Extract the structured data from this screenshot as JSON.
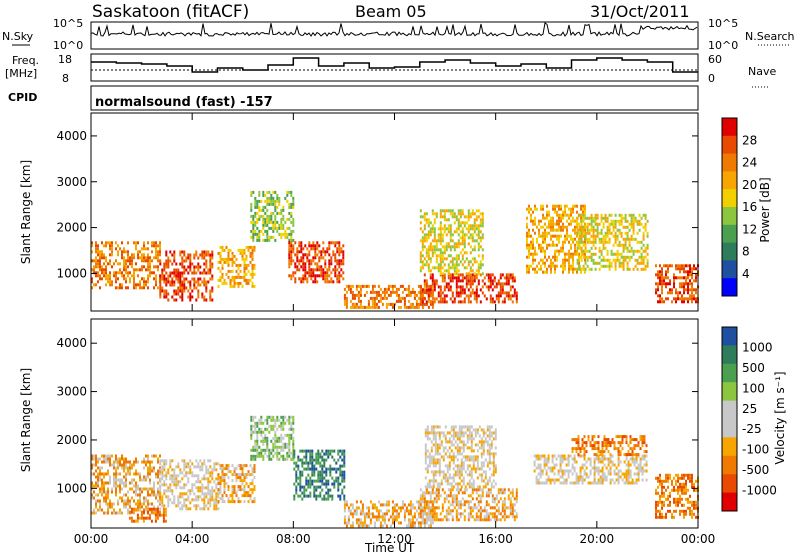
{
  "header": {
    "station": "Saskatoon (fitACF)",
    "beam": "Beam 05",
    "date": "31/Oct/2011"
  },
  "top_panels": {
    "nsky_label": "N.Sky",
    "nsky_ticks": [
      "10^5",
      "10^0"
    ],
    "nsearch_label": "N.Search",
    "freq_label_1": "Freq.",
    "freq_label_2": "[MHz]",
    "freq_ticks": [
      "18",
      "8"
    ],
    "nave_ticks": [
      "60",
      "0"
    ],
    "nave_label": "Nave",
    "cpid_label": "CPID",
    "cpid_text": "normalsound (fast) -157"
  },
  "chart_data": [
    {
      "type": "heatmap",
      "name": "power",
      "ylabel": "Slant Range [km]",
      "yticks": [
        "4000",
        "3000",
        "2000",
        "1000"
      ],
      "ylim": [
        180,
        4500
      ],
      "xlim": [
        0,
        24
      ],
      "colorbar_label": "Power [dB]",
      "colorbar_ticks": [
        "28",
        "24",
        "20",
        "16",
        "12",
        "8",
        "4"
      ],
      "colors": [
        "#0000ff",
        "#1f4fa0",
        "#2e7d5a",
        "#4aa050",
        "#8cc63e",
        "#f2d000",
        "#f7a500",
        "#f07a00",
        "#e84a00",
        "#e00000"
      ],
      "bands": [
        {
          "t0": 0.0,
          "t1": 2.7,
          "r0": 700,
          "r1": 1700,
          "level": 7
        },
        {
          "t0": 2.7,
          "t1": 4.8,
          "r0": 450,
          "r1": 1500,
          "level": 8
        },
        {
          "t0": 5.0,
          "t1": 6.5,
          "r0": 700,
          "r1": 1600,
          "level": 6
        },
        {
          "t0": 6.3,
          "t1": 8.0,
          "r0": 1700,
          "r1": 2800,
          "level": 4
        },
        {
          "t0": 7.8,
          "t1": 10.0,
          "r0": 800,
          "r1": 1700,
          "level": 8
        },
        {
          "t0": 10.0,
          "t1": 13.5,
          "r0": 250,
          "r1": 750,
          "level": 7
        },
        {
          "t0": 13.0,
          "t1": 16.8,
          "r0": 350,
          "r1": 1000,
          "level": 8
        },
        {
          "t0": 13.0,
          "t1": 15.5,
          "r0": 1000,
          "r1": 2400,
          "level": 5
        },
        {
          "t0": 17.2,
          "t1": 19.5,
          "r0": 1000,
          "r1": 2500,
          "level": 6
        },
        {
          "t0": 19.2,
          "t1": 22.0,
          "r0": 1100,
          "r1": 2300,
          "level": 5
        },
        {
          "t0": 22.3,
          "t1": 24.0,
          "r0": 400,
          "r1": 1200,
          "level": 8
        }
      ]
    },
    {
      "type": "heatmap",
      "name": "velocity",
      "ylabel": "Slant Range [km]",
      "yticks": [
        "4000",
        "3000",
        "2000",
        "1000"
      ],
      "ylim": [
        180,
        4500
      ],
      "xlim": [
        0,
        24
      ],
      "xticks": [
        "00:00",
        "04:00",
        "08:00",
        "12:00",
        "16:00",
        "20:00",
        "00:00"
      ],
      "xlabel": "Time UT",
      "colorbar_label": "Velocity [m s⁻¹]",
      "colorbar_ticks": [
        "1000",
        "500",
        "100",
        "25",
        "-25",
        "-100",
        "-500",
        "-1000"
      ],
      "colors": [
        "#e00000",
        "#e84a00",
        "#f07a00",
        "#f7a500",
        "#c8c8c8",
        "#c8c8c8",
        "#8cc63e",
        "#4aa050",
        "#2e7d5a",
        "#1f4fa0"
      ],
      "bands": [
        {
          "t0": 0.0,
          "t1": 2.7,
          "r0": 500,
          "r1": 1700,
          "level": 3
        },
        {
          "t0": 1.5,
          "t1": 3.0,
          "r0": 300,
          "r1": 600,
          "level": 2
        },
        {
          "t0": 2.7,
          "t1": 5.0,
          "r0": 600,
          "r1": 1600,
          "level": 4
        },
        {
          "t0": 5.0,
          "t1": 6.5,
          "r0": 700,
          "r1": 1500,
          "level": 3
        },
        {
          "t0": 6.3,
          "t1": 8.0,
          "r0": 1600,
          "r1": 2500,
          "level": 6
        },
        {
          "t0": 8.0,
          "t1": 10.0,
          "r0": 800,
          "r1": 1800,
          "level": 8
        },
        {
          "t0": 10.0,
          "t1": 13.5,
          "r0": 250,
          "r1": 750,
          "level": 3
        },
        {
          "t0": 13.0,
          "t1": 16.8,
          "r0": 350,
          "r1": 1000,
          "level": 3
        },
        {
          "t0": 13.2,
          "t1": 16.0,
          "r0": 1000,
          "r1": 2300,
          "level": 4
        },
        {
          "t0": 17.5,
          "t1": 22.0,
          "r0": 1100,
          "r1": 1700,
          "level": 4
        },
        {
          "t0": 19.0,
          "t1": 22.0,
          "r0": 1700,
          "r1": 2100,
          "level": 2
        },
        {
          "t0": 22.3,
          "t1": 24.0,
          "r0": 400,
          "r1": 1300,
          "level": 2
        }
      ]
    }
  ]
}
